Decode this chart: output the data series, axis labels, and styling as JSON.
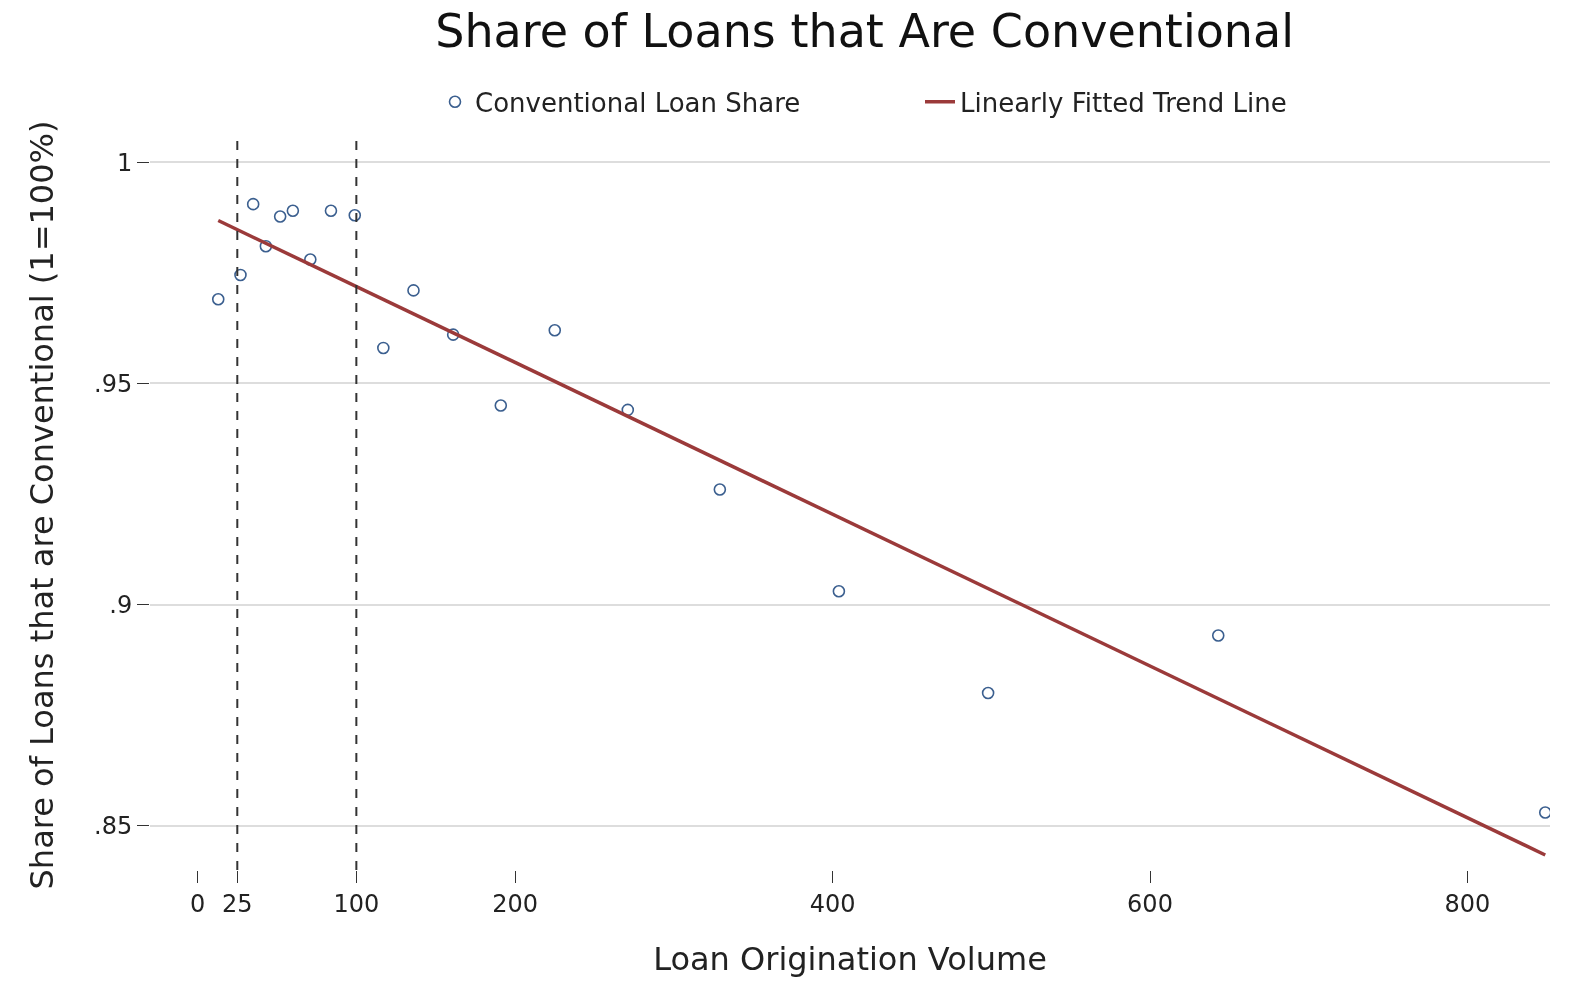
{
  "chart_data": {
    "type": "scatter",
    "title": "Share of Loans that Are Conventional",
    "xlabel": "Loan Origination Volume",
    "ylabel": "Share of Loans that are Conventional (1=100%)",
    "series": [
      {
        "name": "Conventional Loan Share",
        "color": "#3b5f8f",
        "marker": "circle",
        "x": [
          13,
          27,
          35,
          43,
          52,
          60,
          71,
          84,
          99,
          117,
          136,
          161,
          191,
          225,
          271,
          329,
          404,
          498,
          643,
          849
        ],
        "values": [
          0.969,
          0.9745,
          0.9905,
          0.981,
          0.9877,
          0.989,
          0.978,
          0.989,
          0.988,
          0.958,
          0.971,
          0.961,
          0.945,
          0.962,
          0.944,
          0.926,
          0.903,
          0.88,
          0.893,
          0.853
        ]
      },
      {
        "name": "Linearly Fitted Trend Line",
        "type": "line",
        "color": "#9b3a3a",
        "marker": "none",
        "x": [
          13,
          849
        ],
        "values": [
          0.9868,
          0.8434
        ]
      }
    ],
    "xlim": [
      -30,
      852
    ],
    "xticks": [
      0,
      25,
      100,
      200,
      400,
      600,
      800
    ],
    "ylim": [
      0.84,
      1.005
    ],
    "yticks": [
      {
        "value": 0.85,
        "label": ".85"
      },
      {
        "value": 0.9,
        "label": ".9"
      },
      {
        "value": 0.95,
        "label": ".95"
      },
      1
    ],
    "ref_lines": [
      {
        "axis": "x",
        "value": 25,
        "label": null,
        "color": "#333333",
        "line_style": "dashed"
      },
      {
        "axis": "x",
        "value": 100,
        "label": null,
        "color": "#333333",
        "line_style": "dashed"
      }
    ],
    "grid": "y",
    "legend": "top"
  }
}
